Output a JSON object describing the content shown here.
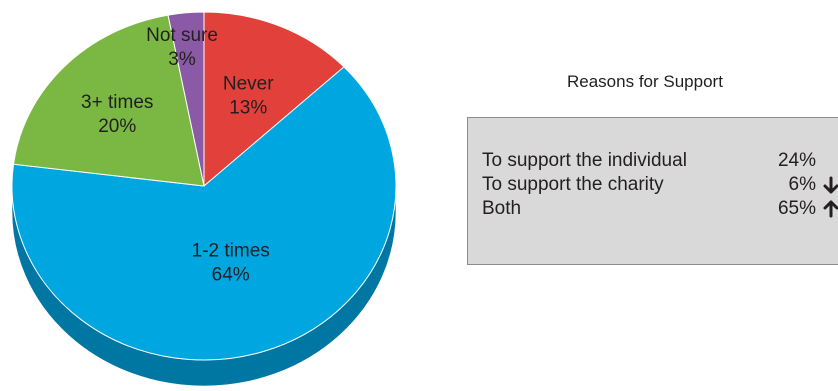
{
  "chart_data": [
    {
      "type": "pie",
      "categories": [
        "Never",
        "1-2 times",
        "3+ times",
        "Not sure"
      ],
      "values": [
        13,
        64,
        20,
        3
      ],
      "value_labels": [
        "13%",
        "64%",
        "20%",
        "3%"
      ],
      "colors": [
        "#e2403a",
        "#00a6df",
        "#7ab843",
        "#8a5aa6"
      ],
      "side_colors": [
        "#a83028",
        "#0077a3",
        "#5a8a30",
        "#64407a"
      ],
      "style": "3d"
    },
    {
      "type": "table",
      "title": "Reasons for Support",
      "rows": [
        {
          "label": "To support the individual",
          "value": "24%",
          "trend": "none",
          "trend_icon": ""
        },
        {
          "label": "To support the charity",
          "value": "6%",
          "trend": "down",
          "trend_icon": "arrow-down-icon"
        },
        {
          "label": "Both",
          "value": "65%",
          "trend": "up",
          "trend_icon": "arrow-up-icon"
        }
      ]
    }
  ]
}
